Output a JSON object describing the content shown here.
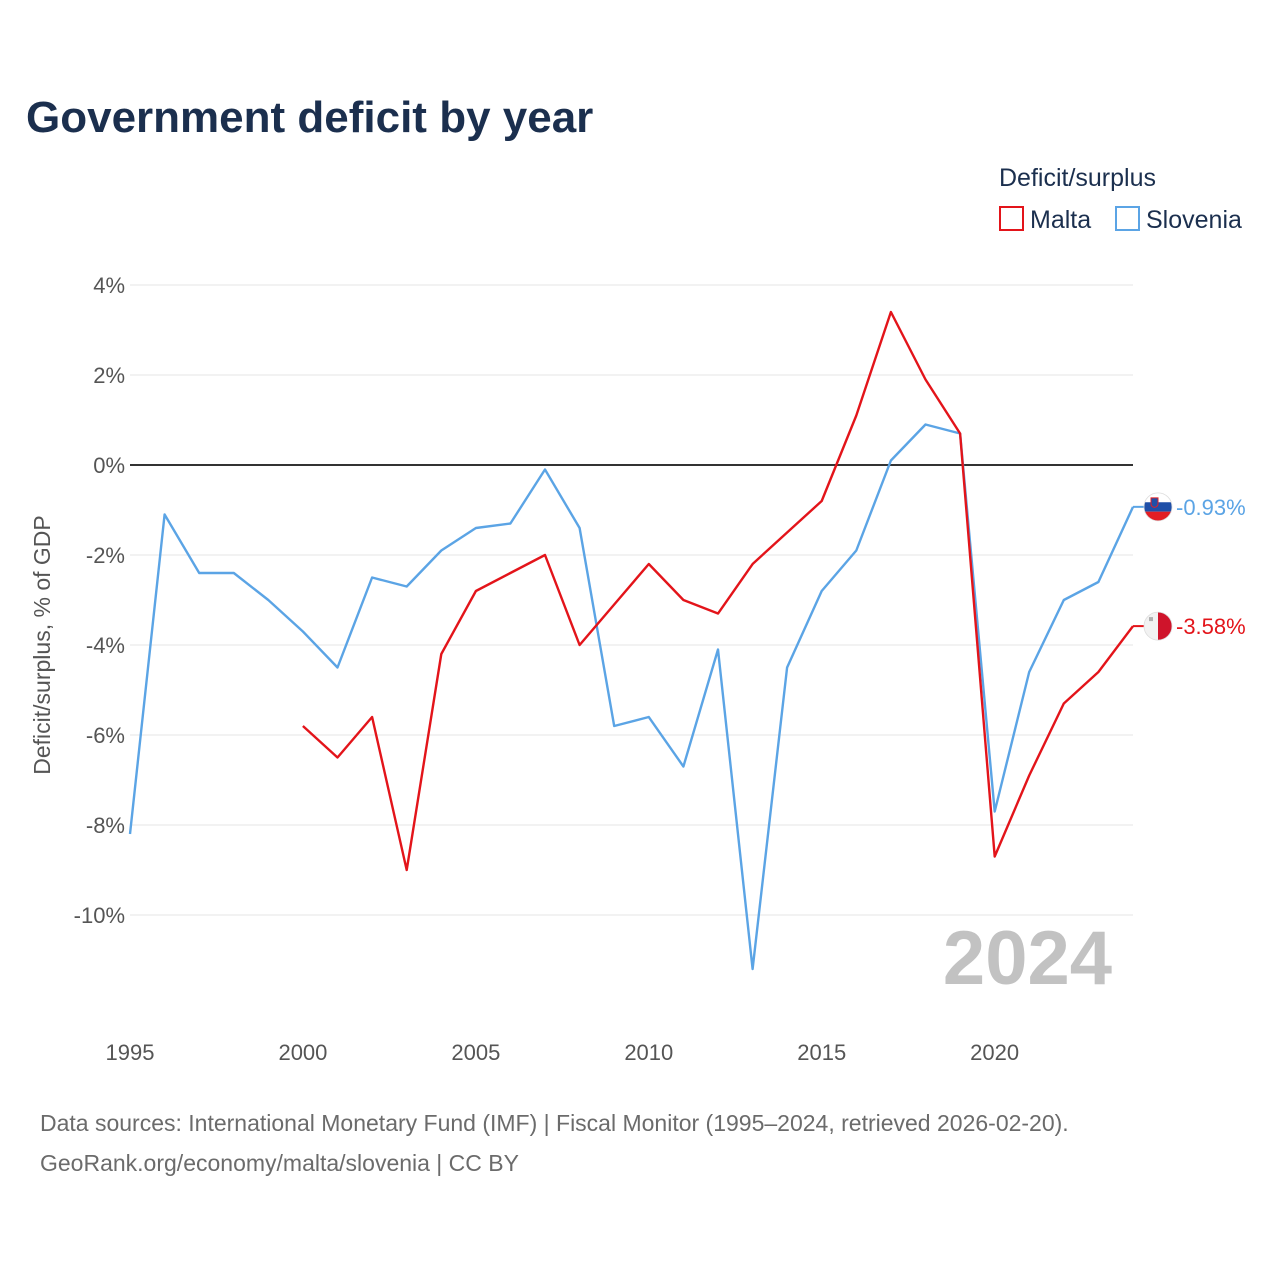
{
  "chart_data": {
    "type": "line",
    "title": "Government deficit by year",
    "legend_title": "Deficit/surplus",
    "legend_position": "top-right",
    "ylabel": "Deficit/surplus, % of GDP",
    "xlabel": "",
    "xlim": [
      1995,
      2024
    ],
    "ylim": [
      -12.0,
      4.5
    ],
    "x_ticks": [
      1995,
      2000,
      2005,
      2010,
      2015,
      2020
    ],
    "x_tick_labels": [
      "1995",
      "2000",
      "2005",
      "2010",
      "2015",
      "2020"
    ],
    "y_ticks": [
      4,
      2,
      0,
      -2,
      -4,
      -6,
      -8,
      -10
    ],
    "y_tick_labels": [
      "4%",
      "2%",
      "0%",
      "-2%",
      "-4%",
      "-6%",
      "-8%",
      "-10%"
    ],
    "grid": true,
    "zero_line": true,
    "current_year": "2024",
    "series": [
      {
        "name": "Malta",
        "color": "#e3141a",
        "flag_icon": "malta-flag-icon",
        "end_label": "-3.58%",
        "x": [
          2000,
          2001,
          2002,
          2003,
          2004,
          2005,
          2006,
          2007,
          2008,
          2009,
          2010,
          2011,
          2012,
          2013,
          2014,
          2015,
          2016,
          2017,
          2018,
          2019,
          2020,
          2021,
          2022,
          2023,
          2024
        ],
        "values": [
          -5.8,
          -6.5,
          -5.6,
          -9.0,
          -4.2,
          -2.8,
          -2.4,
          -2.0,
          -4.0,
          -3.1,
          -2.2,
          -3.0,
          -3.3,
          -2.2,
          -1.5,
          -0.8,
          1.1,
          3.4,
          1.9,
          0.7,
          -8.7,
          -6.9,
          -5.3,
          -4.6,
          -3.58
        ]
      },
      {
        "name": "Slovenia",
        "color": "#5ba4e5",
        "flag_icon": "slovenia-flag-icon",
        "end_label": "-0.93%",
        "x": [
          1995,
          1996,
          1997,
          1998,
          1999,
          2000,
          2001,
          2002,
          2003,
          2004,
          2005,
          2006,
          2007,
          2008,
          2009,
          2010,
          2011,
          2012,
          2013,
          2014,
          2015,
          2016,
          2017,
          2018,
          2019,
          2020,
          2021,
          2022,
          2023,
          2024
        ],
        "values": [
          -8.2,
          -1.1,
          -2.4,
          -2.4,
          -3.0,
          -3.7,
          -4.5,
          -2.5,
          -2.7,
          -1.9,
          -1.4,
          -1.3,
          -0.1,
          -1.4,
          -5.8,
          -5.6,
          -6.7,
          -4.1,
          -11.2,
          -4.5,
          -2.8,
          -1.9,
          0.1,
          0.9,
          0.7,
          -7.7,
          -4.6,
          -3.0,
          -2.6,
          -0.93
        ]
      }
    ]
  },
  "source_line_1": "Data sources: International Monetary Fund (IMF) | Fiscal Monitor (1995–2024, retrieved 2026-02-20).",
  "source_line_2": "GeoRank.org/economy/malta/slovenia | CC BY"
}
